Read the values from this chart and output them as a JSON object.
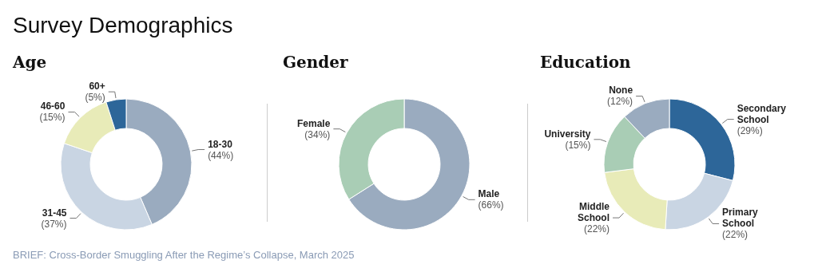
{
  "chart_data": [
    {
      "type": "donut",
      "title": "Age",
      "categories": [
        "18-30",
        "31-45",
        "46-60",
        "60+"
      ],
      "values": [
        44,
        37,
        15,
        5
      ],
      "colors": [
        "#9aabbf",
        "#c9d5e3",
        "#e8ebb8",
        "#2d6699"
      ],
      "value_labels": [
        "(44%)",
        "(37%)",
        "(15%)",
        "(5%)"
      ],
      "annotations": [
        "Survey Demographics",
        "BRIEF: Cross-Border Smuggling After the Regime’s Collapse, March 2025"
      ]
    },
    {
      "type": "donut",
      "title": "Gender",
      "categories": [
        "Male",
        "Female"
      ],
      "values": [
        66,
        34
      ],
      "colors": [
        "#9aabbf",
        "#a9cdb5"
      ],
      "value_labels": [
        "(66%)",
        "(34%)"
      ]
    },
    {
      "type": "donut",
      "title": "Education",
      "categories": [
        "Secondary School",
        "Primary School",
        "Middle School",
        "University",
        "None"
      ],
      "values": [
        29,
        22,
        22,
        15,
        12
      ],
      "colors": [
        "#2d6699",
        "#c9d5e3",
        "#e8ebb8",
        "#a9cdb5",
        "#9aabbf"
      ],
      "value_labels": [
        "(29%)",
        "(22%)",
        "(22%)",
        "(15%)",
        "(12%)"
      ]
    }
  ]
}
